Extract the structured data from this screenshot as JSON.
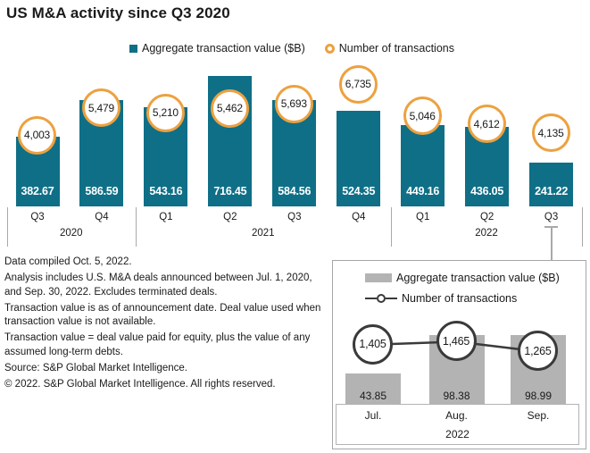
{
  "title": "US M&A activity since Q3 2020",
  "colors": {
    "teal_bar": "#0f6f87",
    "orange_ring": "#eda13f",
    "gray_bar": "#b3b3b3",
    "dark_line": "#3a3a3a",
    "connector_gray": "#a9a9a9",
    "text": "#1a1a1a"
  },
  "chart_data": [
    {
      "type": "bar",
      "title": "US M&A activity since Q3 2020",
      "categories": [
        "Q3",
        "Q4",
        "Q1",
        "Q2",
        "Q3",
        "Q4",
        "Q1",
        "Q2",
        "Q3"
      ],
      "year_groups": [
        {
          "label": "2020",
          "span": 2
        },
        {
          "label": "2021",
          "span": 4
        },
        {
          "label": "2022",
          "span": 3
        }
      ],
      "series": [
        {
          "name": "Aggregate transaction value ($B)",
          "type": "bar",
          "values": [
            382.67,
            586.59,
            543.16,
            716.45,
            584.56,
            524.35,
            449.16,
            436.05,
            241.22
          ],
          "labels": [
            "382.67",
            "586.59",
            "543.16",
            "716.45",
            "584.56",
            "524.35",
            "449.16",
            "436.05",
            "241.22"
          ]
        },
        {
          "name": "Number of transactions",
          "type": "scatter",
          "values": [
            4003,
            5479,
            5210,
            5462,
            5693,
            6735,
            5046,
            4612,
            4135
          ],
          "labels": [
            "4,003",
            "5,479",
            "5,210",
            "5,462",
            "5,693",
            "6,735",
            "5,046",
            "4,612",
            "4,135"
          ]
        }
      ],
      "legend_position": "top"
    },
    {
      "type": "bar",
      "categories": [
        "Jul.",
        "Aug.",
        "Sep."
      ],
      "year": "2022",
      "series": [
        {
          "name": "Aggregate transaction value ($B)",
          "type": "bar",
          "values": [
            43.85,
            98.38,
            98.99
          ],
          "labels": [
            "43.85",
            "98.38",
            "98.99"
          ]
        },
        {
          "name": "Number of transactions",
          "type": "line",
          "values": [
            1405,
            1465,
            1265
          ],
          "labels": [
            "1,405",
            "1,465",
            "1,265"
          ]
        }
      ],
      "legend_position": "top"
    }
  ],
  "footnotes": [
    "Data compiled Oct. 5, 2022.",
    "Analysis includes U.S. M&A deals announced between Jul. 1, 2020, and Sep. 30, 2022. Excludes terminated deals.",
    "Transaction value is as of announcement date. Deal value used when transaction value is not available.",
    "Transaction value = deal value paid for equity, plus the value of any assumed long-term debts.",
    "Source: S&P Global Market Intelligence.",
    "© 2022. S&P Global Market Intelligence. All rights reserved."
  ]
}
